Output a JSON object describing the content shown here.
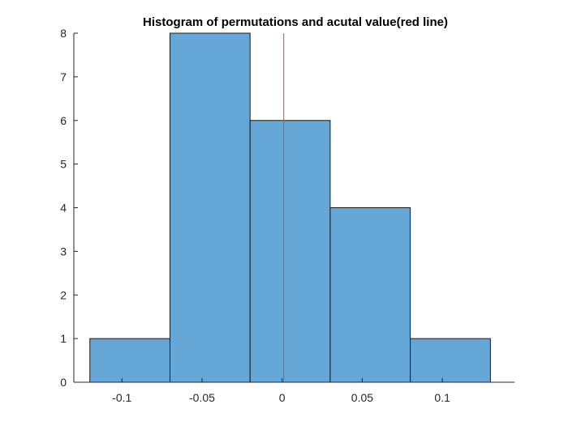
{
  "chart_data": {
    "type": "bar",
    "subtype": "histogram",
    "title": "Histogram of permutations and acutal value(red line)",
    "xlabel": "",
    "ylabel": "",
    "bins": [
      {
        "start": -0.12,
        "end": -0.07,
        "count": 1
      },
      {
        "start": -0.07,
        "end": -0.02,
        "count": 8
      },
      {
        "start": -0.02,
        "end": 0.03,
        "count": 6
      },
      {
        "start": 0.03,
        "end": 0.08,
        "count": 4
      },
      {
        "start": 0.08,
        "end": 0.13,
        "count": 1
      }
    ],
    "actual_value": 0.001,
    "xlim": [
      -0.13,
      0.145
    ],
    "ylim": [
      0,
      8
    ],
    "xticks": [
      -0.1,
      -0.05,
      0,
      0.05,
      0.1
    ],
    "xtick_labels": [
      "-0.1",
      "-0.05",
      "0",
      "0.05",
      "0.1"
    ],
    "yticks": [
      0,
      1,
      2,
      3,
      4,
      5,
      6,
      7,
      8
    ],
    "ytick_labels": [
      "0",
      "1",
      "2",
      "3",
      "4",
      "5",
      "6",
      "7",
      "8"
    ],
    "grid": false,
    "legend": "none",
    "colors": {
      "bar_fill": "#65a8d8",
      "bar_edge": "#1a1a1a",
      "actual_line": "#d95319",
      "axis": "#262626"
    }
  }
}
